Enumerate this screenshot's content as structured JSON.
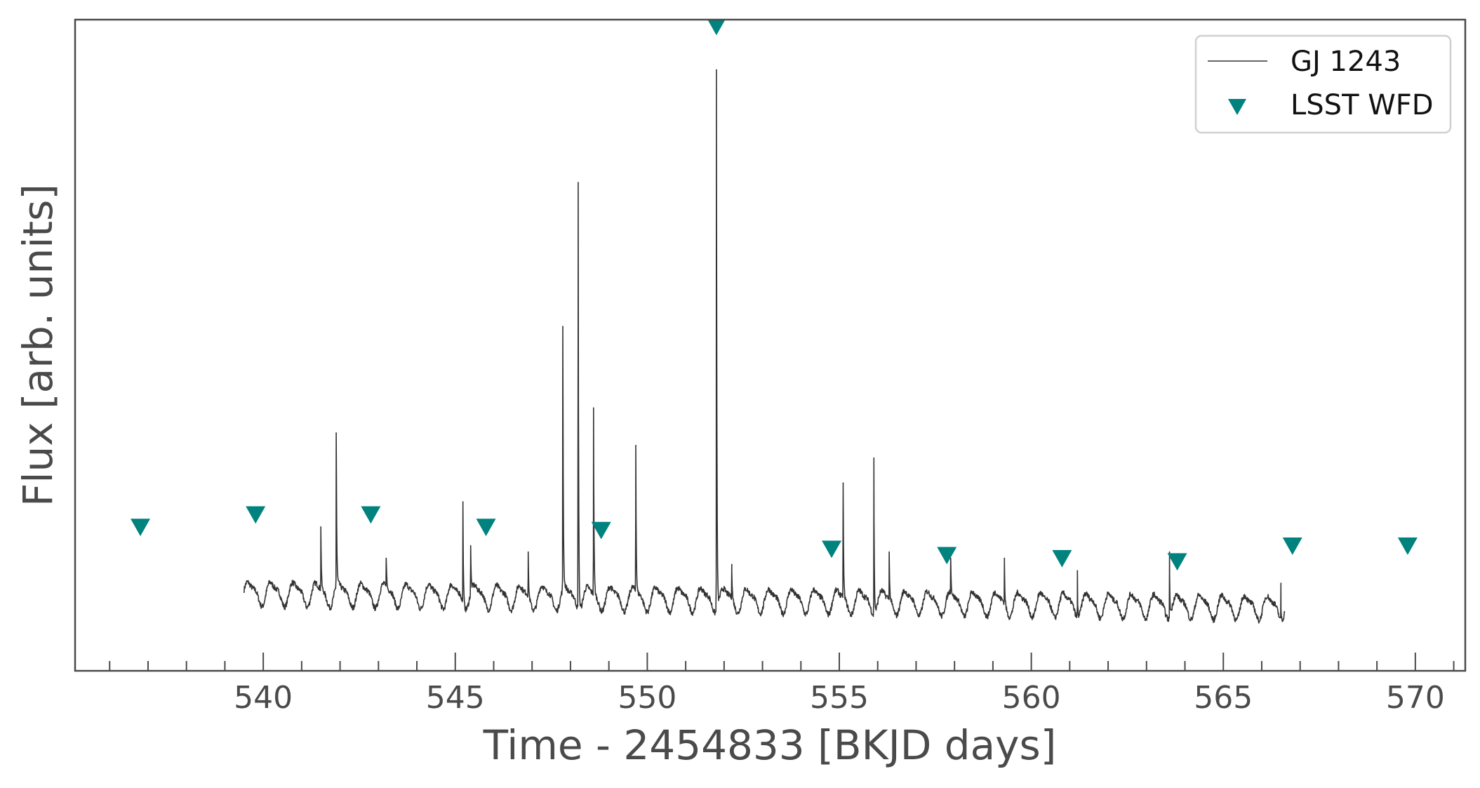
{
  "chart_data": {
    "type": "line",
    "title": "",
    "xlabel": "Time - 2454833 [BKJD days]",
    "ylabel": "Flux [arb. units]",
    "xlim": [
      535.1,
      571.3
    ],
    "ylim": [
      -0.04,
      1.0
    ],
    "x_ticks": [
      540,
      545,
      550,
      555,
      560,
      565,
      570
    ],
    "x_tick_labels": [
      "540",
      "545",
      "550",
      "555",
      "560",
      "565",
      "570"
    ],
    "x_minor_step": 1,
    "y_tick_labels": [],
    "grid": false,
    "legend_position": "top-right",
    "legend": [
      {
        "label": "GJ 1243",
        "kind": "line"
      },
      {
        "label": "LSST WFD",
        "kind": "marker"
      }
    ],
    "colors": {
      "line": "#333333",
      "marker": "#00827f",
      "axes": "#4a4a4a"
    },
    "series": [
      {
        "name": "GJ 1243",
        "kind": "line",
        "rotation_period_days": 0.59,
        "x_start": 539.5,
        "x_end": 566.6,
        "flares": [
          {
            "x": 541.5,
            "y": 0.19
          },
          {
            "x": 541.9,
            "y": 0.34
          },
          {
            "x": 543.2,
            "y": 0.14
          },
          {
            "x": 545.2,
            "y": 0.23
          },
          {
            "x": 545.4,
            "y": 0.16
          },
          {
            "x": 546.9,
            "y": 0.15
          },
          {
            "x": 547.8,
            "y": 0.51
          },
          {
            "x": 548.2,
            "y": 0.74
          },
          {
            "x": 548.6,
            "y": 0.38
          },
          {
            "x": 549.7,
            "y": 0.32
          },
          {
            "x": 551.8,
            "y": 0.92
          },
          {
            "x": 552.2,
            "y": 0.13
          },
          {
            "x": 555.1,
            "y": 0.26
          },
          {
            "x": 555.9,
            "y": 0.3
          },
          {
            "x": 556.3,
            "y": 0.15
          },
          {
            "x": 557.9,
            "y": 0.14
          },
          {
            "x": 559.3,
            "y": 0.14
          },
          {
            "x": 561.2,
            "y": 0.12
          },
          {
            "x": 563.6,
            "y": 0.15
          },
          {
            "x": 566.5,
            "y": 0.1
          }
        ]
      },
      {
        "name": "LSST WFD",
        "kind": "scatter",
        "marker": "triangle-down",
        "points": [
          {
            "x": 536.8,
            "y": 0.19
          },
          {
            "x": 539.8,
            "y": 0.21
          },
          {
            "x": 542.8,
            "y": 0.21
          },
          {
            "x": 545.8,
            "y": 0.19
          },
          {
            "x": 548.8,
            "y": 0.185
          },
          {
            "x": 551.8,
            "y": 0.99
          },
          {
            "x": 554.8,
            "y": 0.155
          },
          {
            "x": 557.8,
            "y": 0.145
          },
          {
            "x": 560.8,
            "y": 0.14
          },
          {
            "x": 563.8,
            "y": 0.135
          },
          {
            "x": 566.8,
            "y": 0.16
          },
          {
            "x": 569.8,
            "y": 0.16
          }
        ]
      }
    ]
  }
}
